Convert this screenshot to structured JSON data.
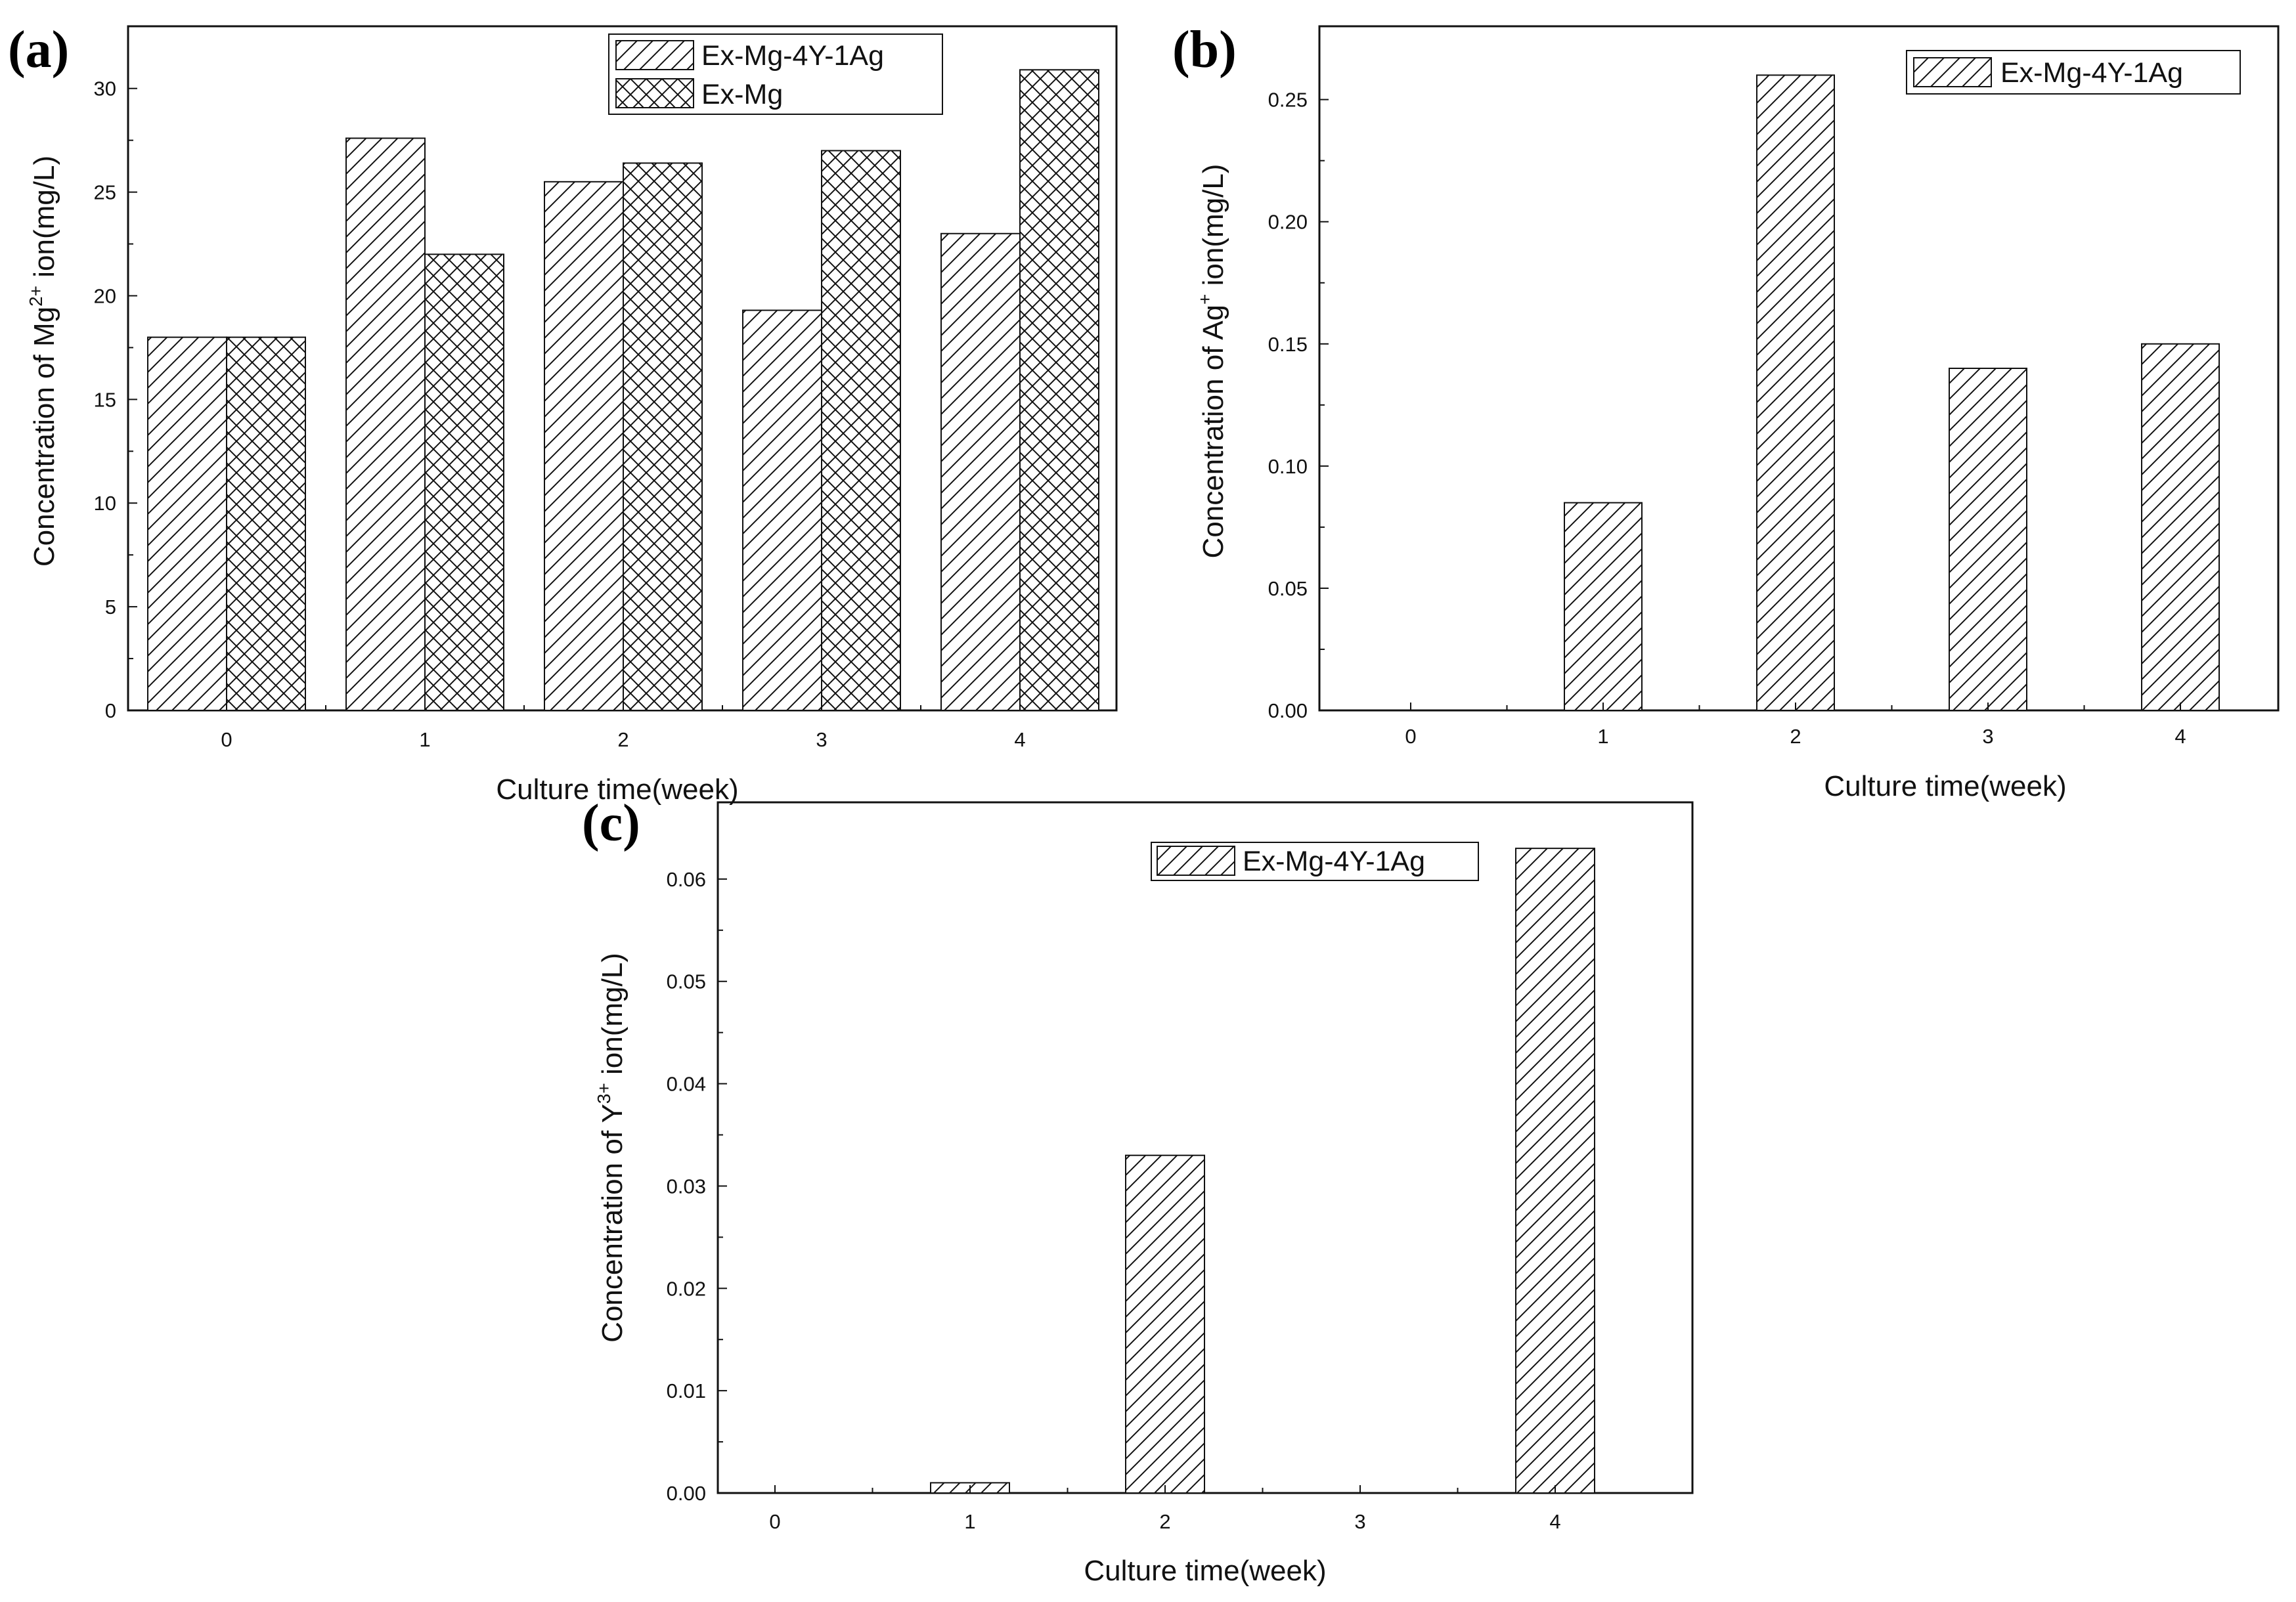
{
  "chart_data": [
    {
      "type": "bar",
      "panel_label": "(a)",
      "categories": [
        "0",
        "1",
        "2",
        "3",
        "4"
      ],
      "series": [
        {
          "name": "Ex-Mg-4Y-1Ag",
          "pattern": "hatch",
          "values": [
            18.0,
            27.6,
            25.5,
            19.3,
            23.0
          ]
        },
        {
          "name": "Ex-Mg",
          "pattern": "crosshatch",
          "values": [
            18.0,
            22.0,
            26.4,
            27.0,
            30.9
          ]
        }
      ],
      "ylim": [
        0,
        33
      ],
      "yticks": [
        "0",
        "5",
        "10",
        "15",
        "20",
        "25",
        "30"
      ],
      "xlabel": "Culture time(week)",
      "ylabel": {
        "prefix": "Concentration of Mg",
        "sup": "2+",
        "suffix": " ion(mg/L)"
      },
      "legend": "top-right",
      "grid": false
    },
    {
      "type": "bar",
      "panel_label": "(b)",
      "categories": [
        "0",
        "1",
        "2",
        "3",
        "4"
      ],
      "series": [
        {
          "name": "Ex-Mg-4Y-1Ag",
          "pattern": "hatch",
          "values": [
            0,
            0.085,
            0.26,
            0.14,
            0.15
          ]
        }
      ],
      "ylim": [
        0,
        0.28
      ],
      "yticks": [
        "0.00",
        "0.05",
        "0.10",
        "0.15",
        "0.20",
        "0.25"
      ],
      "xlabel": "Culture time(week)",
      "ylabel": {
        "prefix": "Concentration of Ag",
        "sup": "+",
        "suffix": " ion(mg/L)"
      },
      "legend": "top-right",
      "grid": false
    },
    {
      "type": "bar",
      "panel_label": "(c)",
      "categories": [
        "0",
        "1",
        "2",
        "3",
        "4"
      ],
      "series": [
        {
          "name": "Ex-Mg-4Y-1Ag",
          "pattern": "hatch",
          "values": [
            0,
            0.001,
            0.033,
            0,
            0.063
          ]
        }
      ],
      "ylim": [
        0,
        0.0675
      ],
      "yticks": [
        "0.00",
        "0.01",
        "0.02",
        "0.03",
        "0.04",
        "0.05",
        "0.06"
      ],
      "xlabel": "Culture time(week)",
      "ylabel": {
        "prefix": "Concentration of  Y",
        "sup": "3+",
        "suffix": " ion(mg/L)"
      },
      "legend": "top-right",
      "grid": false
    }
  ]
}
